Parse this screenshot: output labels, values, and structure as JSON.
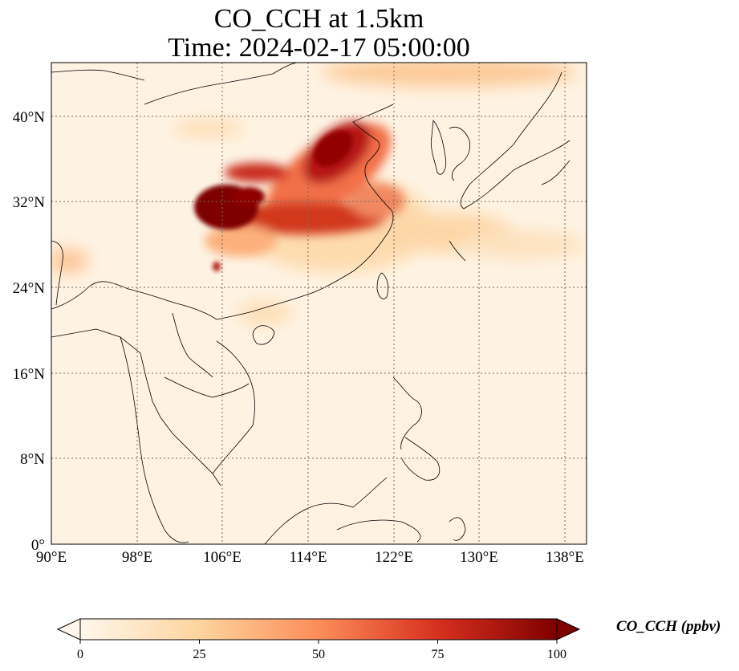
{
  "title_line1": "CO_CCH at 1.5km",
  "title_line2": "Time: 2024-02-17 05:00:00",
  "longitude_ticks": [
    "90°E",
    "98°E",
    "106°E",
    "114°E",
    "122°E",
    "130°E",
    "138°E"
  ],
  "latitude_ticks": [
    "0°",
    "8°N",
    "16°N",
    "24°N",
    "32°N",
    "40°N"
  ],
  "colorbar": {
    "label": "CO_CCH (ppbv)",
    "ticks": [
      "0",
      "25",
      "50",
      "75",
      "100"
    ],
    "colors": [
      "#fff7ec",
      "#fdd49e",
      "#fc8d59",
      "#d7301f",
      "#7f0000"
    ]
  },
  "map_extent": {
    "lon_min": 90,
    "lon_max": 140,
    "lat_min": 0,
    "lat_max": 45
  }
}
